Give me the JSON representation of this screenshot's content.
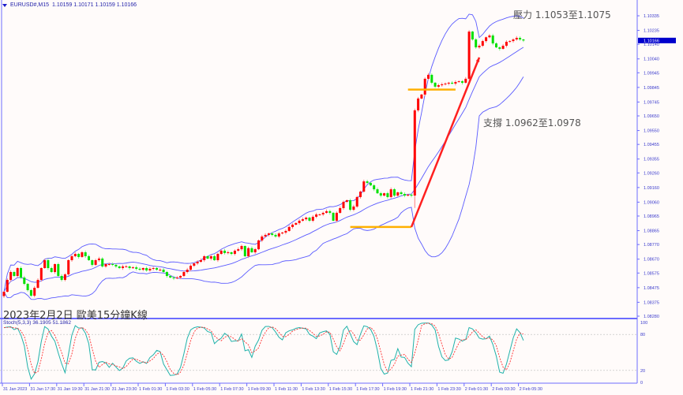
{
  "header": {
    "symbol": "EURUSD#,M15",
    "ohlc": "1.10159 1.10171 1.10159 1.10166"
  },
  "title": "2023年2月2日 歐美15分鐘K線",
  "annotations": {
    "resistance_text": "壓力 1.1053至1.1075",
    "support_text": "支撐 1.0962至1.0978",
    "lines": [
      {
        "type": "horizontal",
        "color": "#ffb000",
        "price": 1.0889,
        "from": "1 Feb 17:00",
        "to": "1 Feb 21:30"
      },
      {
        "type": "horizontal",
        "color": "#ffb000",
        "price": 1.0983,
        "from": "1 Feb 21:15",
        "to": "2 Feb 00:45"
      },
      {
        "type": "arrow",
        "color": "#ff2020",
        "from_time": "1 Feb 21:30",
        "from_price": 1.0889,
        "to_time": "2 Feb 02:30",
        "to_price": 1.1005
      }
    ]
  },
  "colors": {
    "bull": "#ff0000",
    "bear": "#00e000",
    "bands": "#5a5aff",
    "stoch_main": "#20b2aa",
    "stoch_signal": "#ff3030",
    "axis": "#6c6cff",
    "current_price_bg": "#0000cc"
  },
  "chart_data": {
    "type": "candlestick",
    "symbol": "EURUSD#",
    "timeframe": "M15",
    "indicators": [
      "Bollinger Bands",
      "Stoch(5,3,3)"
    ],
    "current_price": 1.10166,
    "ylim": [
      1.0828,
      1.1044
    ],
    "y_ticks": [
      "1.10335",
      "1.10235",
      "1.10140",
      "1.10040",
      "1.09945",
      "1.09845",
      "1.09745",
      "1.09650",
      "1.09550",
      "1.09455",
      "1.09355",
      "1.09260",
      "1.09160",
      "1.09060",
      "1.08965",
      "1.08865",
      "1.08770",
      "1.08670",
      "1.08575",
      "1.08475",
      "1.08375",
      "1.08280"
    ],
    "x_ticks": [
      "31 Jan 2023",
      "31 Jan 17:30",
      "31 Jan 19:30",
      "31 Jan 21:30",
      "31 Jan 23:30",
      "1 Feb 01:30",
      "1 Feb 03:30",
      "1 Feb 05:30",
      "1 Feb 07:30",
      "1 Feb 09:30",
      "1 Feb 11:30",
      "1 Feb 13:30",
      "1 Feb 15:30",
      "1 Feb 17:30",
      "1 Feb 19:30",
      "1 Feb 21:30",
      "1 Feb 23:30",
      "2 Feb 01:30",
      "2 Feb 03:30",
      "2 Feb 05:30"
    ],
    "closes": [
      1.08447,
      1.08528,
      1.08582,
      1.08555,
      1.08609,
      1.08544,
      1.08501,
      1.08458,
      1.0842,
      1.08474,
      1.08528,
      1.08609,
      1.08663,
      1.08609,
      1.08582,
      1.08636,
      1.08555,
      1.08528,
      1.08566,
      1.08663,
      1.0869,
      1.08706,
      1.08685,
      1.08717,
      1.0869,
      1.08663,
      1.08631,
      1.08663,
      1.08674,
      1.0862,
      1.08636,
      1.08636,
      1.08631,
      1.0862,
      1.08609,
      1.0862,
      1.0862,
      1.08609,
      1.08614,
      1.08604,
      1.08598,
      1.08609,
      1.08593,
      1.08604,
      1.08609,
      1.08598,
      1.08598,
      1.08582,
      1.08555,
      1.08544,
      1.08539,
      1.08544,
      1.08555,
      1.08582,
      1.08598,
      1.08625,
      1.08641,
      1.08652,
      1.08663,
      1.0869,
      1.08674,
      1.0869,
      1.08663,
      1.08706,
      1.08728,
      1.08712,
      1.08717,
      1.08706,
      1.08728,
      1.08738,
      1.0876,
      1.0869,
      1.08745,
      1.08717,
      1.08738,
      1.08798,
      1.08825,
      1.08836,
      1.08846,
      1.08836,
      1.08825,
      1.08846,
      1.08852,
      1.08863,
      1.0889,
      1.08906,
      1.08917,
      1.08933,
      1.08943,
      1.08954,
      1.08933,
      1.0896,
      1.08976,
      1.08976,
      1.08987,
      1.08998,
      1.08987,
      1.08933,
      1.08987,
      1.09019,
      1.09062,
      1.09073,
      1.09008,
      1.0903,
      1.09095,
      1.09132,
      1.09202,
      1.09192,
      1.09175,
      1.09148,
      1.09121,
      1.09105,
      1.09121,
      1.09095,
      1.09148,
      1.09105,
      1.09127,
      1.09116,
      1.09105,
      1.09111,
      1.09105,
      1.09688,
      1.09769,
      1.09796,
      1.09904,
      1.09931,
      1.09877,
      1.0985,
      1.0986,
      1.09866,
      1.09871,
      1.09877,
      1.09871,
      1.09882,
      1.09887,
      1.09877,
      1.09904,
      1.10227,
      1.10173,
      1.10119,
      1.1013,
      1.10162,
      1.10188,
      1.102,
      1.10146,
      1.10119,
      1.10109,
      1.1013,
      1.10157,
      1.10162,
      1.10173,
      1.10184,
      1.10173,
      1.10166
    ],
    "stoch": {
      "main": 36.1905,
      "signal": 51.1862,
      "levels": [
        80,
        20
      ],
      "range": [
        0,
        100
      ],
      "label": "Stoch(5,3,3) 36.1905 51.1862"
    },
    "stoch_axis": [
      "100",
      "80",
      "20",
      "0"
    ]
  }
}
